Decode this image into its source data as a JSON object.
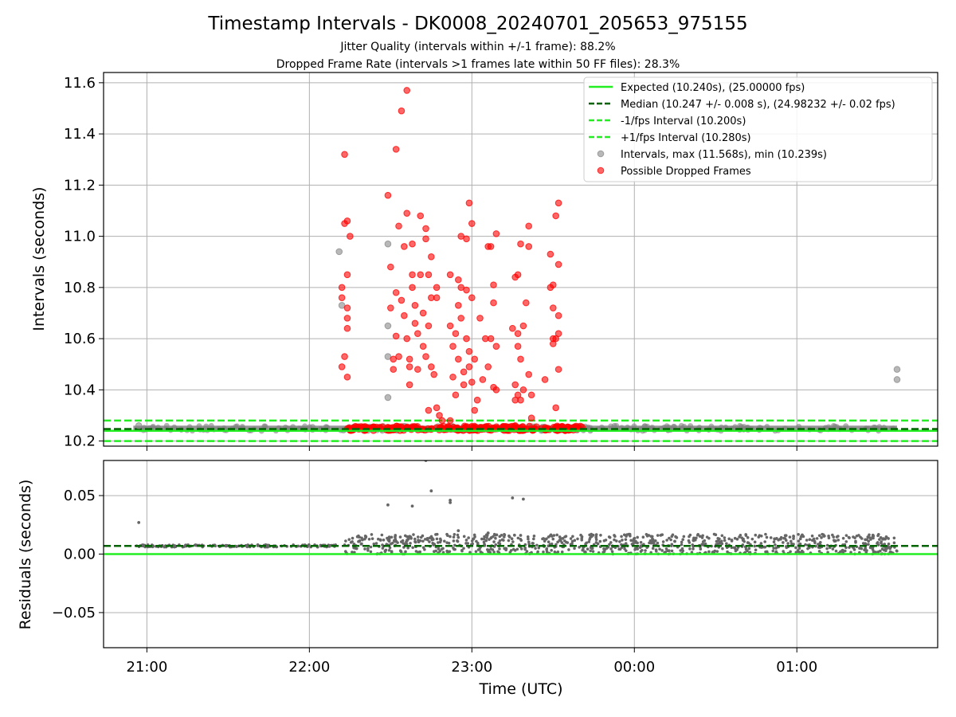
{
  "chart_data": {
    "type": "scatter",
    "title": "Timestamp Intervals - DK0008_20240701_205653_975155",
    "subtitle_1": "Jitter Quality (intervals within +/-1 frame): 88.2%",
    "subtitle_2": "Dropped Frame Rate (intervals >1 frames late within 50 FF files): 28.3%",
    "xlabel": "Time (UTC)",
    "x_tick_labels": [
      "21:00",
      "22:00",
      "23:00",
      "00:00",
      "01:00"
    ],
    "x_range": [
      "20:44",
      "01:52"
    ],
    "grid": true,
    "colors": {
      "expected": "#22ee22",
      "median": "#006400",
      "fps_band": "#22ee22",
      "intervals": "#888888",
      "dropped": "#ff0000",
      "residuals": "#666666"
    },
    "top": {
      "ylabel": "Intervals (seconds)",
      "ylim": [
        10.18,
        11.64
      ],
      "y_ticks": [
        10.2,
        10.4,
        10.6,
        10.8,
        11.0,
        11.2,
        11.4,
        11.6
      ],
      "y_tick_labels": [
        "10.2",
        "10.4",
        "10.6",
        "10.8",
        "11.0",
        "11.2",
        "11.4",
        "11.6"
      ],
      "expected": 10.24,
      "median": 10.247,
      "minus_1fps": 10.2,
      "plus_1fps": 10.28,
      "legend_position": "top-right",
      "legend": [
        "Expected (10.240s), (25.00000 fps)",
        "Median (10.247 +/- 0.008 s), (24.98232 +/- 0.02 fps)",
        "-1/fps Interval (10.200s)",
        "+1/fps Interval (10.280s)",
        "Intervals, max (11.568s), min (10.239s)",
        "Possible Dropped Frames"
      ],
      "baseline_band": {
        "from": "20:55",
        "to": "01:37",
        "min": 10.239,
        "max": 10.26
      },
      "dropped_band": {
        "from": "22:14",
        "to": "23:41",
        "min": 10.241,
        "max": 10.258
      },
      "series": [
        {
          "name": "Intervals, max (11.568s), min (10.239s)",
          "points": [
            [
              "22:11",
              10.94
            ],
            [
              "22:12",
              10.73
            ],
            [
              "22:29",
              10.97
            ],
            [
              "22:29",
              10.65
            ],
            [
              "22:29",
              10.53
            ],
            [
              "22:29",
              10.37
            ],
            [
              "20:57",
              10.26
            ],
            [
              "01:37",
              10.48
            ],
            [
              "01:37",
              10.44
            ]
          ]
        },
        {
          "name": "Possible Dropped Frames",
          "points": [
            [
              "22:12",
              10.8
            ],
            [
              "22:12",
              10.76
            ],
            [
              "22:12",
              10.49
            ],
            [
              "22:13",
              10.53
            ],
            [
              "22:13",
              11.32
            ],
            [
              "22:13",
              11.05
            ],
            [
              "22:14",
              10.72
            ],
            [
              "22:14",
              10.68
            ],
            [
              "22:14",
              10.64
            ],
            [
              "22:14",
              10.45
            ],
            [
              "22:14",
              10.85
            ],
            [
              "22:14",
              11.06
            ],
            [
              "22:15",
              11.0
            ],
            [
              "22:29",
              11.16
            ],
            [
              "22:30",
              10.88
            ],
            [
              "22:30",
              10.72
            ],
            [
              "22:31",
              10.52
            ],
            [
              "22:31",
              10.48
            ],
            [
              "22:32",
              11.34
            ],
            [
              "22:32",
              10.78
            ],
            [
              "22:32",
              10.61
            ],
            [
              "22:33",
              10.53
            ],
            [
              "22:33",
              11.04
            ],
            [
              "22:34",
              11.49
            ],
            [
              "22:34",
              10.75
            ],
            [
              "22:35",
              10.69
            ],
            [
              "22:35",
              10.96
            ],
            [
              "22:36",
              11.57
            ],
            [
              "22:36",
              11.09
            ],
            [
              "22:36",
              10.6
            ],
            [
              "22:37",
              10.52
            ],
            [
              "22:37",
              10.49
            ],
            [
              "22:37",
              10.42
            ],
            [
              "22:38",
              10.97
            ],
            [
              "22:38",
              10.85
            ],
            [
              "22:38",
              10.8
            ],
            [
              "22:39",
              10.73
            ],
            [
              "22:39",
              10.66
            ],
            [
              "22:40",
              10.62
            ],
            [
              "22:40",
              10.48
            ],
            [
              "22:41",
              11.08
            ],
            [
              "22:41",
              10.85
            ],
            [
              "22:42",
              10.7
            ],
            [
              "22:42",
              10.57
            ],
            [
              "22:43",
              11.03
            ],
            [
              "22:43",
              10.99
            ],
            [
              "22:43",
              10.53
            ],
            [
              "22:44",
              10.85
            ],
            [
              "22:44",
              10.65
            ],
            [
              "22:44",
              10.32
            ],
            [
              "22:45",
              10.92
            ],
            [
              "22:45",
              10.76
            ],
            [
              "22:45",
              10.49
            ],
            [
              "22:46",
              10.46
            ],
            [
              "22:47",
              10.8
            ],
            [
              "22:47",
              10.76
            ],
            [
              "22:47",
              10.33
            ],
            [
              "22:48",
              10.3
            ],
            [
              "22:49",
              10.28
            ],
            [
              "22:52",
              10.28
            ],
            [
              "22:52",
              10.85
            ],
            [
              "22:52",
              10.65
            ],
            [
              "22:53",
              10.57
            ],
            [
              "22:53",
              10.45
            ],
            [
              "22:54",
              10.62
            ],
            [
              "22:54",
              10.38
            ],
            [
              "22:55",
              10.83
            ],
            [
              "22:55",
              10.73
            ],
            [
              "22:55",
              10.52
            ],
            [
              "22:56",
              11.0
            ],
            [
              "22:56",
              10.8
            ],
            [
              "22:56",
              10.68
            ],
            [
              "22:57",
              10.47
            ],
            [
              "22:57",
              10.42
            ],
            [
              "22:58",
              10.99
            ],
            [
              "22:58",
              10.79
            ],
            [
              "22:58",
              10.6
            ],
            [
              "22:59",
              11.13
            ],
            [
              "22:59",
              10.55
            ],
            [
              "22:59",
              10.49
            ],
            [
              "23:00",
              11.05
            ],
            [
              "23:00",
              10.76
            ],
            [
              "23:00",
              10.43
            ],
            [
              "23:01",
              10.52
            ],
            [
              "23:01",
              10.32
            ],
            [
              "23:02",
              10.36
            ],
            [
              "23:03",
              10.68
            ],
            [
              "23:04",
              10.44
            ],
            [
              "23:05",
              10.6
            ],
            [
              "23:06",
              10.96
            ],
            [
              "23:06",
              10.49
            ],
            [
              "23:07",
              10.96
            ],
            [
              "23:07",
              10.6
            ],
            [
              "23:08",
              10.41
            ],
            [
              "23:08",
              10.81
            ],
            [
              "23:08",
              10.74
            ],
            [
              "23:09",
              11.01
            ],
            [
              "23:09",
              10.57
            ],
            [
              "23:09",
              10.4
            ],
            [
              "23:15",
              10.64
            ],
            [
              "23:16",
              10.84
            ],
            [
              "23:16",
              10.42
            ],
            [
              "23:16",
              10.36
            ],
            [
              "23:16",
              10.26
            ],
            [
              "23:17",
              10.85
            ],
            [
              "23:17",
              10.62
            ],
            [
              "23:17",
              10.57
            ],
            [
              "23:17",
              10.38
            ],
            [
              "23:18",
              10.97
            ],
            [
              "23:18",
              10.52
            ],
            [
              "23:18",
              10.36
            ],
            [
              "23:19",
              10.65
            ],
            [
              "23:19",
              10.4
            ],
            [
              "23:20",
              10.74
            ],
            [
              "23:21",
              10.96
            ],
            [
              "23:21",
              11.04
            ],
            [
              "23:21",
              10.46
            ],
            [
              "23:22",
              10.29
            ],
            [
              "23:22",
              10.38
            ],
            [
              "23:29",
              10.93
            ],
            [
              "23:29",
              10.8
            ],
            [
              "23:30",
              10.81
            ],
            [
              "23:30",
              10.72
            ],
            [
              "23:30",
              10.6
            ],
            [
              "23:30",
              10.58
            ],
            [
              "23:31",
              10.33
            ],
            [
              "23:31",
              10.6
            ],
            [
              "23:31",
              11.08
            ],
            [
              "23:32",
              11.13
            ],
            [
              "23:32",
              10.89
            ],
            [
              "23:32",
              10.69
            ],
            [
              "23:32",
              10.48
            ],
            [
              "23:32",
              10.62
            ],
            [
              "23:27",
              10.44
            ]
          ]
        }
      ]
    },
    "bottom": {
      "ylabel": "Residuals (seconds)",
      "ylim": [
        -0.08,
        0.08
      ],
      "y_ticks": [
        -0.05,
        0.0,
        0.05
      ],
      "y_tick_labels": [
        "−0.05",
        "0.00",
        "0.05"
      ],
      "expected": 0.0,
      "median": 0.007,
      "cluster_early": {
        "from": "20:56",
        "to": "22:12",
        "min": 0.006,
        "max": 0.008
      },
      "cluster_late": {
        "from": "22:13",
        "to": "01:37",
        "min": 0.0,
        "max": 0.017
      },
      "series": [
        {
          "name": "Residuals",
          "points": [
            [
              "20:57",
              0.027
            ],
            [
              "22:29",
              0.042
            ],
            [
              "22:38",
              0.041
            ],
            [
              "22:43",
              0.08
            ],
            [
              "22:45",
              0.054
            ],
            [
              "22:52",
              0.046
            ],
            [
              "22:52",
              0.044
            ],
            [
              "23:15",
              0.048
            ],
            [
              "23:19",
              0.047
            ],
            [
              "22:55",
              0.02
            ],
            [
              "23:06",
              0.018
            ],
            [
              "23:18",
              0.016
            ]
          ]
        }
      ]
    }
  }
}
